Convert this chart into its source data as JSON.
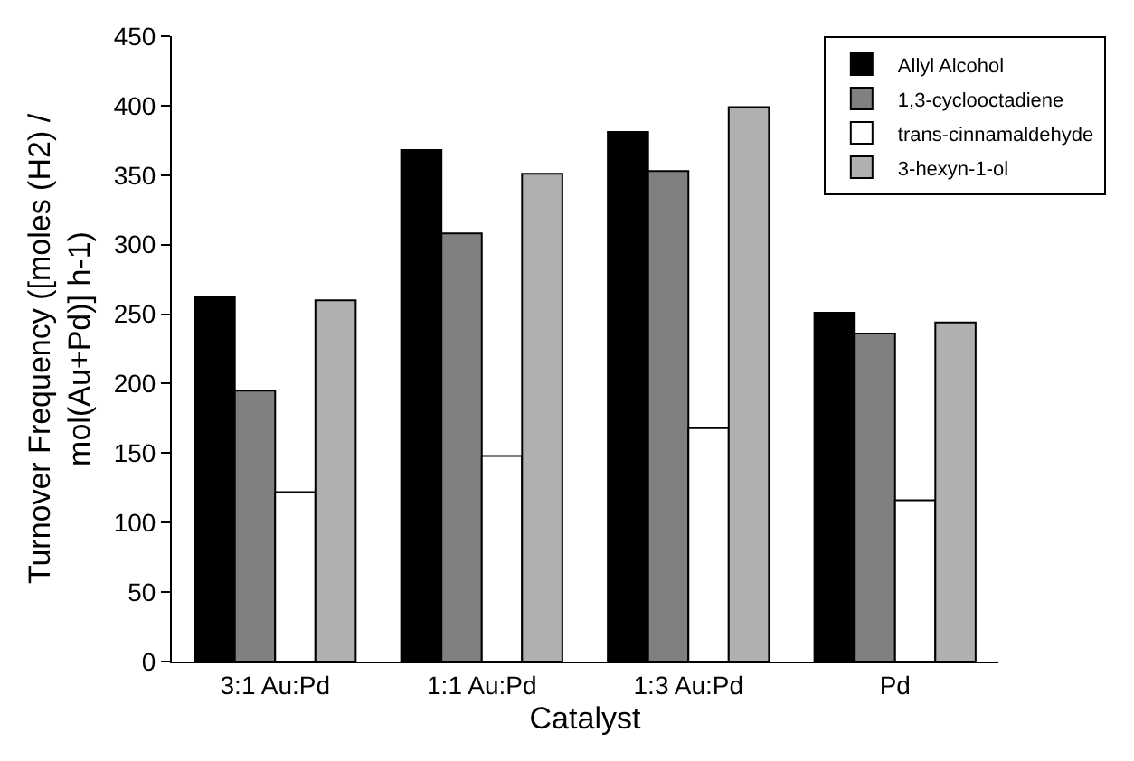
{
  "chart_data": {
    "type": "bar",
    "xlabel": "Catalyst",
    "ylabel": "Turnover Frequency ([moles (H2) /\nmol(Au+Pd)] h-1)",
    "categories": [
      "3:1 Au:Pd",
      "1:1 Au:Pd",
      "1:3 Au:Pd",
      "Pd"
    ],
    "series": [
      {
        "name": "Allyl Alcohol",
        "color": "#000000",
        "values": [
          262,
          368,
          381,
          251
        ]
      },
      {
        "name": "1,3-cyclooctadiene",
        "color": "#808080",
        "values": [
          195,
          308,
          353,
          236
        ]
      },
      {
        "name": "trans-cinnamaldehyde",
        "color": "#ffffff",
        "values": [
          122,
          148,
          168,
          116
        ]
      },
      {
        "name": "3-hexyn-1-ol",
        "color": "#b0b0b0",
        "values": [
          260,
          351,
          399,
          244
        ]
      }
    ],
    "ylim": [
      0,
      450
    ],
    "yticks": [
      0,
      50,
      100,
      150,
      200,
      250,
      300,
      350,
      400,
      450
    ],
    "legend": "top right"
  }
}
